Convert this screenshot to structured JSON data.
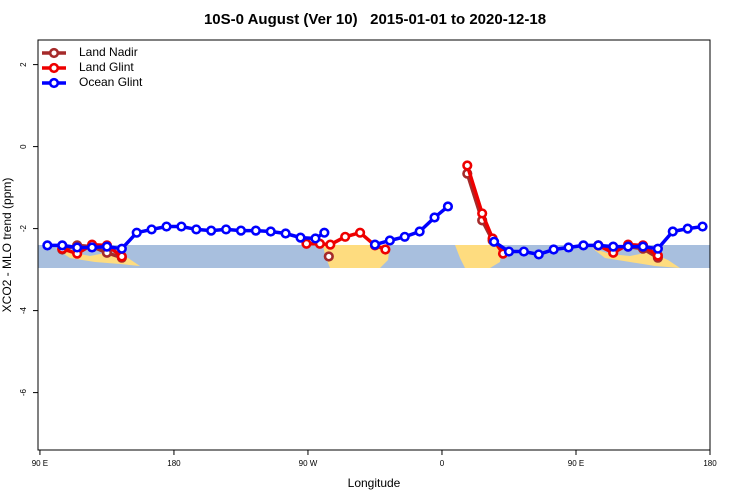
{
  "chart_data": {
    "type": "line",
    "title": "10S-0 August (Ver 10)   2015-01-01 to 2020-12-18",
    "x_label": "Longitude",
    "y_label": "XCO2 - MLO trend (ppm)",
    "xlim": [
      88.7,
      540
    ],
    "ylim": [
      -7.4,
      2.6
    ],
    "xticks": [
      {
        "value": 90,
        "label": "90 E"
      },
      180,
      {
        "value": 270,
        "label": "90 W"
      },
      {
        "value": 360,
        "label": "0"
      },
      {
        "value": 450,
        "label": "90 E"
      },
      {
        "value": 540,
        "label": "180"
      }
    ],
    "yticks": [
      2,
      0,
      -2,
      -4,
      -6
    ],
    "legend": "top-left",
    "series": [
      {
        "name": "Land Nadir",
        "color": "#a52a2a",
        "x": [
          105,
          115,
          125,
          135,
          145,
          200,
          284,
          330,
          377,
          387,
          394,
          430,
          465,
          475,
          485,
          495,
          505
        ],
        "values": [
          -2.51,
          -2.41,
          -2.44,
          -2.59,
          -2.71,
          null,
          -2.68,
          null,
          -0.66,
          -1.8,
          -2.29,
          null,
          -2.41,
          -2.46,
          -2.44,
          -2.49,
          -2.71
        ]
      },
      {
        "name": "Land Glint",
        "color": "#ee0000",
        "x": [
          105,
          115,
          125,
          135,
          145,
          200,
          269,
          278,
          285,
          295,
          305,
          315,
          322,
          350,
          377,
          387,
          394,
          401,
          430,
          465,
          475,
          485,
          495,
          505
        ],
        "values": [
          -2.49,
          -2.61,
          -2.39,
          -2.41,
          -2.68,
          null,
          -2.37,
          -2.37,
          -2.39,
          -2.2,
          -2.1,
          -2.41,
          -2.51,
          null,
          -0.46,
          -1.63,
          -2.24,
          -2.61,
          null,
          -2.41,
          -2.59,
          -2.39,
          -2.41,
          -2.66
        ]
      },
      {
        "name": "Ocean Glint",
        "color": "#0000ff",
        "x": [
          95,
          105,
          115,
          125,
          135,
          145,
          155,
          165,
          175,
          185,
          195,
          205,
          215,
          225,
          235,
          245,
          255,
          265,
          275,
          281,
          300,
          315,
          325,
          335,
          345,
          355,
          364,
          380,
          395,
          405,
          415,
          425,
          435,
          445,
          455,
          465,
          475,
          485,
          495,
          505,
          515,
          525,
          535
        ],
        "values": [
          -2.41,
          -2.41,
          -2.46,
          -2.46,
          -2.44,
          -2.49,
          -2.1,
          -2.02,
          -1.95,
          -1.95,
          -2.02,
          -2.05,
          -2.02,
          -2.05,
          -2.05,
          -2.07,
          -2.12,
          -2.22,
          -2.24,
          -2.1,
          null,
          -2.39,
          -2.29,
          -2.2,
          -2.07,
          -1.73,
          -1.46,
          null,
          -2.32,
          -2.56,
          -2.56,
          -2.63,
          -2.51,
          -2.46,
          -2.41,
          -2.41,
          -2.44,
          -2.44,
          -2.44,
          -2.49,
          -2.07,
          -2.0,
          -1.95
        ]
      }
    ]
  }
}
